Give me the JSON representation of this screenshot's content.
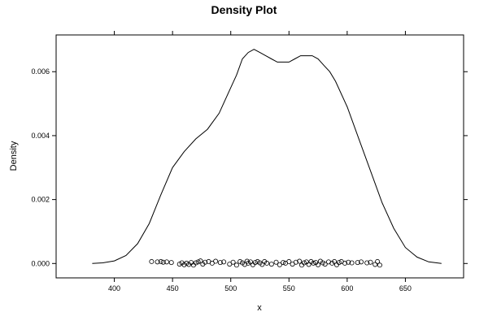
{
  "chart_data": {
    "type": "line",
    "title": "Density Plot",
    "xlabel": "x",
    "ylabel": "Density",
    "xlim": [
      350,
      700
    ],
    "ylim": [
      -0.00045,
      0.00715
    ],
    "xticks": [
      400,
      450,
      500,
      550,
      600,
      650
    ],
    "xtick_labels": [
      "400",
      "450",
      "500",
      "550",
      "600",
      "650"
    ],
    "yticks": [
      0.0,
      0.002,
      0.004,
      0.006
    ],
    "ytick_labels": [
      "0.000",
      "0.002",
      "0.004",
      "0.006"
    ],
    "grid": false,
    "legend": "none",
    "series": [
      {
        "kind": "density-line",
        "x": [
          381,
          390,
          400,
          410,
          420,
          430,
          440,
          450,
          460,
          470,
          480,
          490,
          500,
          505,
          510,
          515,
          520,
          525,
          530,
          535,
          540,
          545,
          550,
          555,
          560,
          565,
          570,
          575,
          580,
          585,
          590,
          600,
          610,
          620,
          630,
          640,
          650,
          660,
          670,
          681
        ],
        "y": [
          0.0,
          2e-05,
          8e-05,
          0.00025,
          0.00062,
          0.00125,
          0.00215,
          0.003,
          0.0035,
          0.0039,
          0.0042,
          0.0047,
          0.0055,
          0.0059,
          0.0064,
          0.0066,
          0.0067,
          0.0066,
          0.0065,
          0.0064,
          0.0063,
          0.0063,
          0.0063,
          0.0064,
          0.0065,
          0.0065,
          0.0065,
          0.0064,
          0.0062,
          0.006,
          0.0057,
          0.0049,
          0.0039,
          0.0029,
          0.0019,
          0.0011,
          0.0005,
          0.0002,
          5e-05,
          0.0
        ]
      },
      {
        "kind": "rug-points",
        "x": [
          432,
          437,
          440,
          442,
          445,
          449,
          456,
          458,
          460,
          462,
          464,
          466,
          468,
          470,
          472,
          474,
          476,
          478,
          481,
          484,
          487,
          491,
          494,
          499,
          502,
          505,
          508,
          510,
          512,
          514,
          515,
          517,
          519,
          521,
          523,
          525,
          527,
          529,
          531,
          535,
          539,
          542,
          545,
          547,
          550,
          553,
          556,
          559,
          561,
          563,
          565,
          567,
          569,
          571,
          573,
          575,
          577,
          579,
          581,
          584,
          587,
          589,
          591,
          593,
          595,
          598,
          601,
          604,
          609,
          612,
          617,
          620,
          624,
          626,
          628
        ],
        "y": [
          6e-05,
          5e-05,
          6e-05,
          4e-05,
          5e-05,
          3e-05,
          -2e-05,
          2e-05,
          -4e-05,
          1e-05,
          -3e-05,
          3e-05,
          -5e-05,
          2e-05,
          5e-05,
          8e-05,
          -2e-05,
          4e-05,
          6e-05,
          1e-05,
          7e-05,
          3e-05,
          5e-05,
          -2e-05,
          4e-05,
          -5e-05,
          6e-05,
          2e-05,
          -3e-05,
          7e-05,
          1e-05,
          5e-05,
          -4e-05,
          3e-05,
          6e-05,
          2e-05,
          -3e-05,
          6e-05,
          1e-05,
          -2e-05,
          4e-05,
          -4e-05,
          3e-05,
          1e-05,
          6e-05,
          -2e-05,
          4e-05,
          7e-05,
          -5e-05,
          2e-05,
          5e-05,
          -3e-05,
          6e-05,
          1e-05,
          3e-05,
          -4e-05,
          7e-05,
          2e-05,
          -2e-05,
          5e-05,
          1e-05,
          6e-05,
          -4e-05,
          3e-05,
          6e-05,
          1e-05,
          4e-05,
          2e-05,
          3e-05,
          5e-05,
          2e-05,
          4e-05,
          -3e-05,
          6e-05,
          -5e-05
        ]
      }
    ]
  }
}
